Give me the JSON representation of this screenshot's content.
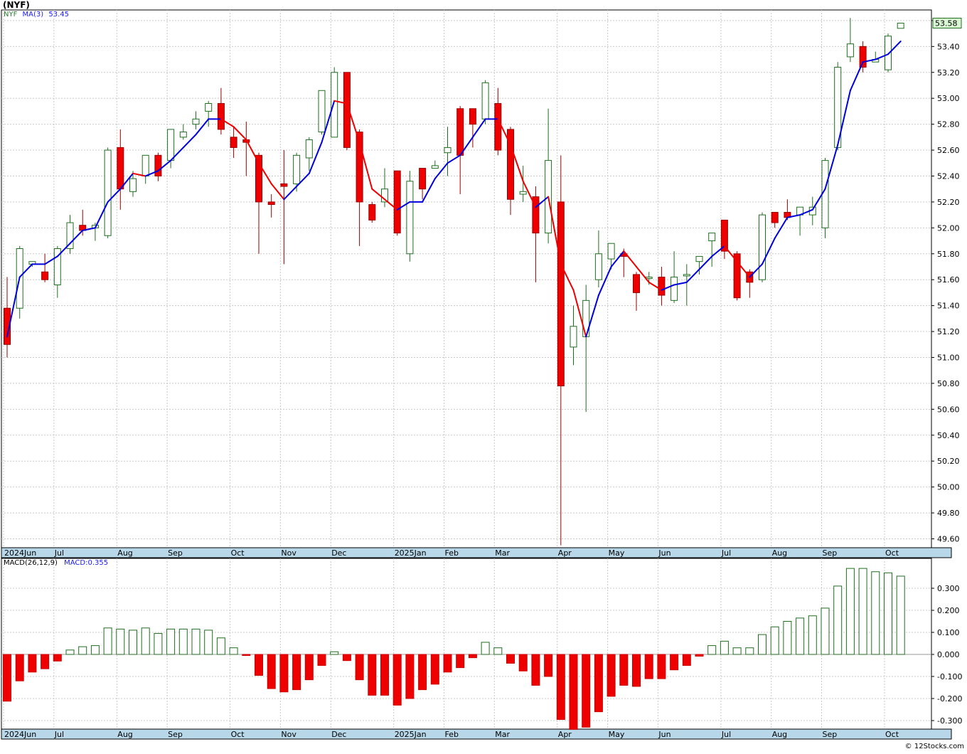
{
  "title": "(NYF)",
  "legend": {
    "symbol": "NYF",
    "ma_label": "MA(3)",
    "ma_value": "53.45"
  },
  "macd_legend": {
    "label": "MACD(26,12,9)",
    "value": "MACD:0.355"
  },
  "last_price": "53.58",
  "credit": "© 12Stocks.com",
  "colors": {
    "up": "#1f6e1f",
    "down": "#ee0000",
    "ma_up": "#0000dd",
    "ma_down": "#ee0000",
    "grid": "#c8c8c8",
    "axis_band": "#b8d8ea"
  },
  "chart_data": [
    {
      "type": "candlestick",
      "ylim": [
        49.55,
        53.65
      ],
      "yticks": [
        "53.60",
        "53.40",
        "53.20",
        "53.00",
        "52.80",
        "52.60",
        "52.40",
        "52.20",
        "52.00",
        "51.80",
        "51.60",
        "51.40",
        "51.20",
        "51.00",
        "50.80",
        "50.60",
        "50.40",
        "50.20",
        "50.00",
        "49.80",
        "49.60"
      ],
      "xlabels": [
        {
          "label": "2024Jun",
          "week": 0
        },
        {
          "label": "Jul",
          "week": 4
        },
        {
          "label": "Aug",
          "week": 9
        },
        {
          "label": "Sep",
          "week": 13
        },
        {
          "label": "Oct",
          "week": 18
        },
        {
          "label": "Nov",
          "week": 22
        },
        {
          "label": "Dec",
          "week": 26
        },
        {
          "label": "2025Jan",
          "week": 31
        },
        {
          "label": "Feb",
          "week": 35
        },
        {
          "label": "Mar",
          "week": 39
        },
        {
          "label": "Apr",
          "week": 44
        },
        {
          "label": "May",
          "week": 48
        },
        {
          "label": "Jun",
          "week": 52
        },
        {
          "label": "Jul",
          "week": 57
        },
        {
          "label": "Aug",
          "week": 61
        },
        {
          "label": "Sep",
          "week": 65
        },
        {
          "label": "Oct",
          "week": 70
        }
      ],
      "candles": [
        [
          51.38,
          51.62,
          51.0,
          51.1
        ],
        [
          51.38,
          51.86,
          51.3,
          51.84
        ],
        [
          51.72,
          51.74,
          51.7,
          51.74
        ],
        [
          51.66,
          51.8,
          51.58,
          51.6
        ],
        [
          51.56,
          51.86,
          51.46,
          51.84
        ],
        [
          51.84,
          52.1,
          51.8,
          52.04
        ],
        [
          52.02,
          52.14,
          51.94,
          51.98
        ],
        [
          52.0,
          52.04,
          51.9,
          52.02
        ],
        [
          51.94,
          52.62,
          51.92,
          52.6
        ],
        [
          52.62,
          52.76,
          52.14,
          52.3
        ],
        [
          52.28,
          52.44,
          52.24,
          52.38
        ],
        [
          52.4,
          52.56,
          52.34,
          52.56
        ],
        [
          52.56,
          52.58,
          52.36,
          52.4
        ],
        [
          52.52,
          52.76,
          52.46,
          52.76
        ],
        [
          52.7,
          52.8,
          52.68,
          52.74
        ],
        [
          52.8,
          52.9,
          52.76,
          52.84
        ],
        [
          52.9,
          52.98,
          52.78,
          52.96
        ],
        [
          52.96,
          53.08,
          52.72,
          52.76
        ],
        [
          52.7,
          52.78,
          52.54,
          52.62
        ],
        [
          52.68,
          52.82,
          52.4,
          52.66
        ],
        [
          52.56,
          52.58,
          51.8,
          52.2
        ],
        [
          52.2,
          52.26,
          52.08,
          52.18
        ],
        [
          52.34,
          52.6,
          51.72,
          52.32
        ],
        [
          52.34,
          52.58,
          52.28,
          52.56
        ],
        [
          52.54,
          52.7,
          52.44,
          52.68
        ],
        [
          52.74,
          53.06,
          52.72,
          53.06
        ],
        [
          52.7,
          53.24,
          52.7,
          53.2
        ],
        [
          53.2,
          53.2,
          52.6,
          52.62
        ],
        [
          52.74,
          52.76,
          51.86,
          52.2
        ],
        [
          52.18,
          52.2,
          52.04,
          52.06
        ],
        [
          52.2,
          52.46,
          52.16,
          52.3
        ],
        [
          52.44,
          52.44,
          51.94,
          51.96
        ],
        [
          51.8,
          52.44,
          51.74,
          52.36
        ],
        [
          52.46,
          52.46,
          52.22,
          52.3
        ],
        [
          52.46,
          52.52,
          52.46,
          52.48
        ],
        [
          52.58,
          52.78,
          52.4,
          52.62
        ],
        [
          52.92,
          52.94,
          52.26,
          52.56
        ],
        [
          52.92,
          52.92,
          52.62,
          52.8
        ],
        [
          52.84,
          53.14,
          52.8,
          53.12
        ],
        [
          52.96,
          53.08,
          52.56,
          52.6
        ],
        [
          52.76,
          52.78,
          52.1,
          52.22
        ],
        [
          52.26,
          52.48,
          52.2,
          52.28
        ],
        [
          52.24,
          52.32,
          51.58,
          51.96
        ],
        [
          51.96,
          52.92,
          51.88,
          52.52
        ],
        [
          52.2,
          52.56,
          49.55,
          50.78
        ],
        [
          51.08,
          51.4,
          50.94,
          51.24
        ],
        [
          51.16,
          51.56,
          50.58,
          51.44
        ],
        [
          51.6,
          51.98,
          51.54,
          51.8
        ],
        [
          51.76,
          51.88,
          51.68,
          51.88
        ],
        [
          51.8,
          51.84,
          51.62,
          51.78
        ],
        [
          51.64,
          51.66,
          51.36,
          51.5
        ],
        [
          51.62,
          51.66,
          51.56,
          51.62
        ],
        [
          51.62,
          51.7,
          51.4,
          51.48
        ],
        [
          51.44,
          51.82,
          51.42,
          51.62
        ],
        [
          51.64,
          51.72,
          51.4,
          51.64
        ],
        [
          51.74,
          51.78,
          51.64,
          51.78
        ],
        [
          51.9,
          51.96,
          51.7,
          51.96
        ],
        [
          52.06,
          52.06,
          51.76,
          51.82
        ],
        [
          51.8,
          51.82,
          51.44,
          51.46
        ],
        [
          51.66,
          51.68,
          51.46,
          51.58
        ],
        [
          51.6,
          52.12,
          51.58,
          52.1
        ],
        [
          52.12,
          52.12,
          52.0,
          52.04
        ],
        [
          52.12,
          52.22,
          52.06,
          52.08
        ],
        [
          52.1,
          52.16,
          51.94,
          52.16
        ],
        [
          52.1,
          52.24,
          52.02,
          52.16
        ],
        [
          52.0,
          52.54,
          51.92,
          52.52
        ],
        [
          52.62,
          53.28,
          52.6,
          53.24
        ],
        [
          53.32,
          53.62,
          53.28,
          53.42
        ],
        [
          53.4,
          53.44,
          53.2,
          53.24
        ],
        [
          53.28,
          53.36,
          53.28,
          53.3
        ],
        [
          53.22,
          53.5,
          53.2,
          53.48
        ],
        [
          53.54,
          53.58,
          53.54,
          53.58
        ]
      ],
      "ma": [
        51.16,
        51.62,
        51.72,
        51.72,
        51.78,
        51.88,
        51.98,
        52.0,
        52.2,
        52.3,
        52.42,
        52.4,
        52.44,
        52.52,
        52.62,
        52.72,
        52.84,
        52.84,
        52.78,
        52.68,
        52.5,
        52.34,
        52.22,
        52.32,
        52.42,
        52.66,
        52.98,
        52.96,
        52.66,
        52.3,
        52.22,
        52.14,
        52.2,
        52.2,
        52.38,
        52.5,
        52.56,
        52.7,
        52.84,
        52.84,
        52.64,
        52.36,
        52.16,
        52.24,
        51.72,
        51.52,
        51.16,
        51.48,
        51.7,
        51.82,
        51.7,
        51.58,
        51.52,
        51.56,
        51.58,
        51.68,
        51.78,
        51.86,
        51.74,
        51.62,
        51.72,
        51.92,
        52.08,
        52.1,
        52.14,
        52.3,
        52.64,
        53.06,
        53.28,
        53.3,
        53.34,
        53.44
      ]
    },
    {
      "type": "bar",
      "name": "MACD",
      "ylim": [
        -0.34,
        0.4
      ],
      "yticks": [
        "0.300",
        "0.200",
        "0.100",
        "0.000",
        "-0.100",
        "-0.200",
        "-0.300"
      ],
      "values": [
        -0.212,
        -0.12,
        -0.08,
        -0.065,
        -0.03,
        0.02,
        0.035,
        0.04,
        0.12,
        0.115,
        0.11,
        0.12,
        0.095,
        0.115,
        0.115,
        0.115,
        0.11,
        0.075,
        0.03,
        -0.005,
        -0.095,
        -0.155,
        -0.17,
        -0.16,
        -0.115,
        -0.05,
        0.012,
        -0.028,
        -0.115,
        -0.185,
        -0.185,
        -0.23,
        -0.2,
        -0.16,
        -0.135,
        -0.08,
        -0.06,
        -0.015,
        0.055,
        0.03,
        -0.04,
        -0.075,
        -0.14,
        -0.1,
        -0.295,
        -0.34,
        -0.33,
        -0.26,
        -0.19,
        -0.14,
        -0.145,
        -0.11,
        -0.11,
        -0.07,
        -0.05,
        -0.008,
        0.04,
        0.06,
        0.03,
        0.03,
        0.09,
        0.125,
        0.15,
        0.165,
        0.175,
        0.21,
        0.31,
        0.39,
        0.39,
        0.375,
        0.37,
        0.355
      ]
    }
  ]
}
